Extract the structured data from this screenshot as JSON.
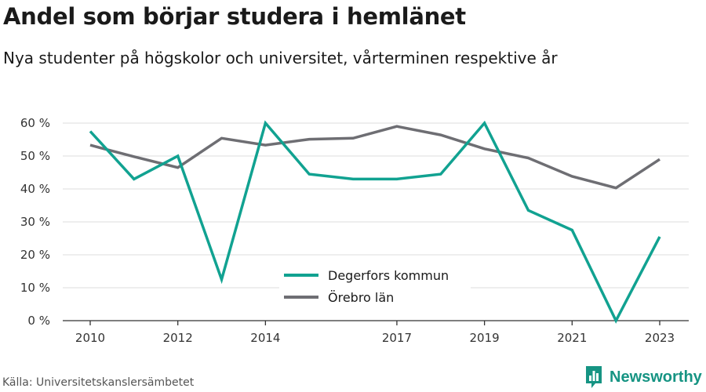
{
  "title": "Andel som börjar studera i hemlänet",
  "subtitle": "Nya studenter på högskolor och universitet, vårterminen respektive år",
  "source": "Källa: Universitetskanslersämbetet",
  "brand": {
    "name": "Newsworthy",
    "icon": "bar-chart-logo-icon",
    "color": "#169483"
  },
  "chart_data": {
    "type": "line",
    "x": [
      2010,
      2011,
      2012,
      2013,
      2014,
      2015,
      2016,
      2017,
      2018,
      2019,
      2020,
      2021,
      2022,
      2023
    ],
    "x_ticks": [
      2010,
      2012,
      2014,
      2017,
      2019,
      2021,
      2023
    ],
    "y_ticks": [
      0,
      10,
      20,
      30,
      40,
      50,
      60
    ],
    "y_tick_labels": [
      "0 %",
      "10 %",
      "20 %",
      "30 %",
      "40 %",
      "50 %",
      "60 %"
    ],
    "ylim": [
      0,
      60
    ],
    "grid": true,
    "legend_position": "center-bottom",
    "series": [
      {
        "name": "Degerfors kommun",
        "color": "#11a291",
        "values": [
          57.5,
          43,
          50,
          12.5,
          60,
          44.5,
          43,
          43,
          44.5,
          60,
          33.5,
          27.5,
          0,
          25.5
        ]
      },
      {
        "name": "Örebro län",
        "color": "#6e6e73",
        "values": [
          53.3,
          49.8,
          46.5,
          55.4,
          53.3,
          55.1,
          55.4,
          59,
          56.4,
          52.2,
          49.4,
          43.8,
          40.3,
          49
        ]
      }
    ]
  }
}
